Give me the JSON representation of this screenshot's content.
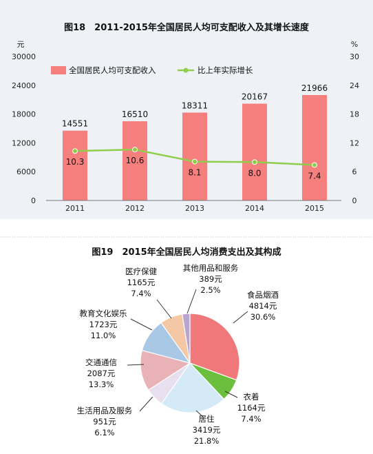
{
  "chart_data": [
    {
      "type": "bar",
      "title": "图18　2011-2015年全国居民人均可支配收入及其增长速度",
      "left_unit": "元",
      "right_unit": "%",
      "categories": [
        "2011",
        "2012",
        "2013",
        "2014",
        "2015"
      ],
      "left_ticks": [
        "30000",
        "24000",
        "18000",
        "12000",
        "6000",
        "0"
      ],
      "right_ticks": [
        "30",
        "24",
        "18",
        "12",
        "6",
        "0"
      ],
      "ylim": [
        0,
        30000
      ],
      "y2lim": [
        0,
        30
      ],
      "series": [
        {
          "name": "全国居民人均可支配收入",
          "kind": "bar",
          "color": "#f47f7d",
          "values": [
            14551,
            16510,
            18311,
            20167,
            21966
          ],
          "labels": [
            "14551",
            "16510",
            "18311",
            "20167",
            "21966"
          ]
        },
        {
          "name": "比上年实际增长",
          "kind": "line",
          "axis": "right",
          "color": "#8fce4a",
          "values": [
            10.3,
            10.6,
            8.1,
            8.0,
            7.4
          ],
          "labels": [
            "10.3",
            "10.6",
            "8.1",
            "8.0",
            "7.4"
          ]
        }
      ],
      "legend_position": "top-left",
      "grid": false,
      "plot_background": "#eef2f7"
    },
    {
      "type": "pie",
      "title": "图19　2015年全国居民人均消费支出及其构成",
      "slices": [
        {
          "name": "食品烟酒",
          "amount": "4814元",
          "pct": "30.6%",
          "value": 30.6,
          "color": "#f0787a"
        },
        {
          "name": "衣着",
          "amount": "1164元",
          "pct": "7.4%",
          "value": 7.4,
          "color": "#6cbf3d"
        },
        {
          "name": "居住",
          "amount": "3419元",
          "pct": "21.8%",
          "value": 21.8,
          "color": "#d4eaf6"
        },
        {
          "name": "生活用品及服务",
          "amount": "951元",
          "pct": "6.1%",
          "value": 6.1,
          "color": "#e8e0ee"
        },
        {
          "name": "交通通信",
          "amount": "2087元",
          "pct": "13.3%",
          "value": 13.3,
          "color": "#e9b2b6"
        },
        {
          "name": "教育文化娱乐",
          "amount": "1723元",
          "pct": "11.0%",
          "value": 11.0,
          "color": "#a8c8e6"
        },
        {
          "name": "医疗保健",
          "amount": "1165元",
          "pct": "7.4%",
          "value": 7.4,
          "color": "#f4c8a4"
        },
        {
          "name": "其他用品和服务",
          "amount": "389元",
          "pct": "2.5%",
          "value": 2.5,
          "color": "#b8a6d0"
        }
      ]
    }
  ]
}
